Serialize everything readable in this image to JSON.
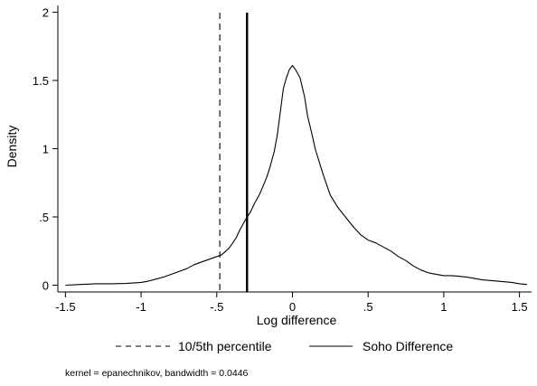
{
  "chart_data": {
    "type": "line",
    "xlabel": "Log difference",
    "ylabel": "Density",
    "xlim": [
      -1.55,
      1.58
    ],
    "ylim": [
      -0.05,
      2.05
    ],
    "x_ticks": [
      -1.5,
      -1,
      -0.5,
      0,
      0.5,
      1,
      1.5
    ],
    "x_tick_labels": [
      "-1.5",
      "-1",
      "-.5",
      "0",
      ".5",
      "1",
      "1.5"
    ],
    "y_ticks": [
      0,
      0.5,
      1,
      1.5,
      2
    ],
    "y_tick_labels": [
      "0",
      ".5",
      "1",
      "1.5",
      "2"
    ],
    "grid": false,
    "series": [
      {
        "name": "Soho Difference",
        "style": "solid",
        "x": [
          -1.5,
          -1.4,
          -1.3,
          -1.2,
          -1.1,
          -1.0,
          -0.95,
          -0.9,
          -0.85,
          -0.8,
          -0.75,
          -0.7,
          -0.65,
          -0.6,
          -0.55,
          -0.5,
          -0.47,
          -0.45,
          -0.42,
          -0.4,
          -0.37,
          -0.35,
          -0.32,
          -0.3,
          -0.28,
          -0.25,
          -0.22,
          -0.2,
          -0.17,
          -0.15,
          -0.12,
          -0.1,
          -0.08,
          -0.06,
          -0.04,
          -0.02,
          0.0,
          0.02,
          0.05,
          0.08,
          0.1,
          0.13,
          0.15,
          0.2,
          0.25,
          0.3,
          0.35,
          0.4,
          0.45,
          0.5,
          0.55,
          0.6,
          0.65,
          0.7,
          0.75,
          0.8,
          0.85,
          0.9,
          0.95,
          1.0,
          1.05,
          1.1,
          1.15,
          1.2,
          1.25,
          1.3,
          1.35,
          1.4,
          1.45,
          1.5,
          1.55
        ],
        "y": [
          0.0,
          0.005,
          0.01,
          0.01,
          0.012,
          0.02,
          0.03,
          0.045,
          0.06,
          0.08,
          0.1,
          0.12,
          0.15,
          0.17,
          0.19,
          0.21,
          0.22,
          0.24,
          0.27,
          0.3,
          0.35,
          0.4,
          0.46,
          0.5,
          0.53,
          0.6,
          0.66,
          0.71,
          0.79,
          0.86,
          0.98,
          1.1,
          1.27,
          1.44,
          1.52,
          1.58,
          1.61,
          1.58,
          1.52,
          1.38,
          1.24,
          1.1,
          1.0,
          0.82,
          0.66,
          0.57,
          0.5,
          0.43,
          0.37,
          0.33,
          0.31,
          0.28,
          0.25,
          0.21,
          0.18,
          0.14,
          0.11,
          0.09,
          0.08,
          0.07,
          0.07,
          0.065,
          0.06,
          0.05,
          0.04,
          0.035,
          0.03,
          0.025,
          0.02,
          0.01,
          0.005
        ]
      }
    ],
    "vertical_lines": [
      {
        "name": "10/5th percentile",
        "x": -0.48,
        "style": "dashed",
        "width": 1.1
      },
      {
        "name": "",
        "x": -0.3,
        "style": "solid",
        "width": 2.4
      }
    ],
    "legend": {
      "position": "bottom",
      "entries": [
        {
          "label": "10/5th percentile",
          "style": "dashed"
        },
        {
          "label": "Soho Difference",
          "style": "solid"
        }
      ]
    },
    "note": "kernel = epanechnikov, bandwidth = 0.0446"
  }
}
